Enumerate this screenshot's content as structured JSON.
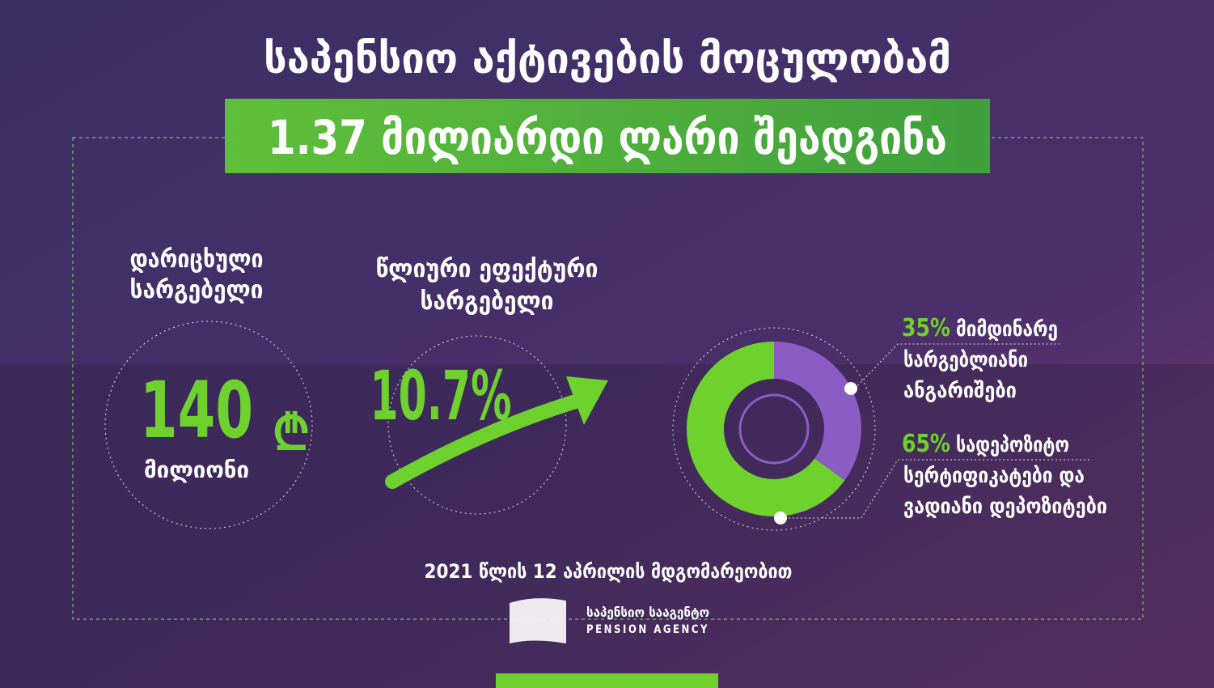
{
  "header": {
    "title_line1": "საპენსიო აქტივების მოცულობამ",
    "title_line2": "1.37 მილიარდი ლარი შეადგინა"
  },
  "accrued": {
    "label_lines": [
      "დარიცხული",
      "სარგებელი"
    ],
    "value": 140,
    "currency": "₾",
    "unit": "მილიონი"
  },
  "yield": {
    "label_lines": [
      "წლიური ეფექტური",
      "სარგებელი"
    ],
    "value": "10.7%"
  },
  "donut": {
    "values": [
      35,
      65
    ],
    "value_labels": [
      "35%",
      "65%"
    ],
    "colors": [
      "#8a5cc4",
      "#6ed12e"
    ],
    "descriptions": [
      [
        "მიმდინარე",
        "სარგებლიანი",
        "ანგარიშები"
      ],
      [
        "სადეპოზიტო",
        "სერტიფიკატები და",
        "ვადიანი დეპოზიტები"
      ]
    ]
  },
  "footer": {
    "date": "2021 წლის 12 აპრილის მდგომარეობით",
    "logo_ka": "საპენსიო სააგენტო",
    "logo_en": "PENSION AGENCY"
  }
}
